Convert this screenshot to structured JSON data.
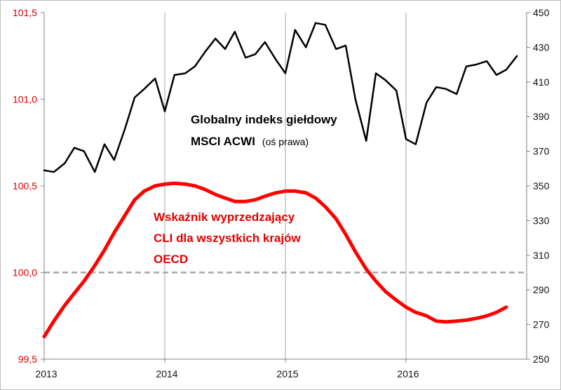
{
  "chart_data": {
    "type": "line",
    "colors": {
      "msci": "#000000",
      "cli": "#ff0000",
      "reference": "#a6a6a6",
      "left_axis_text": "#e00000",
      "right_axis_text": "#111111",
      "gridline": "#a6a6a6",
      "frame": "#808080"
    },
    "x_axis": {
      "range": [
        2013.0,
        2017.0
      ],
      "ticks": [
        2013,
        2014,
        2015,
        2016
      ],
      "tick_labels": [
        "2013",
        "2014",
        "2015",
        "2016"
      ],
      "vertical_grid_at": [
        2014,
        2015,
        2016
      ]
    },
    "y_left": {
      "range": [
        99.5,
        101.5
      ],
      "ticks": [
        99.5,
        100.0,
        100.5,
        101.0,
        101.5
      ],
      "tick_labels": [
        "99,5",
        "100,0",
        "100,5",
        "101,0",
        "101,5"
      ],
      "reference_line": 100.0
    },
    "y_right": {
      "range": [
        250,
        450
      ],
      "ticks": [
        250,
        270,
        290,
        310,
        330,
        350,
        370,
        390,
        410,
        430,
        450
      ],
      "tick_labels": [
        "250",
        "270",
        "290",
        "310",
        "330",
        "350",
        "370",
        "390",
        "410",
        "430",
        "450"
      ]
    },
    "series": [
      {
        "name": "Globalny indeks giełdowy MSCI ACWI (oś prawa)",
        "axis": "right",
        "x": [
          2013.0,
          2013.08,
          2013.17,
          2013.25,
          2013.33,
          2013.42,
          2013.5,
          2013.58,
          2013.67,
          2013.75,
          2013.83,
          2013.92,
          2014.0,
          2014.08,
          2014.17,
          2014.25,
          2014.33,
          2014.42,
          2014.5,
          2014.58,
          2014.67,
          2014.75,
          2014.83,
          2014.92,
          2015.0,
          2015.08,
          2015.17,
          2015.25,
          2015.33,
          2015.42,
          2015.5,
          2015.58,
          2015.67,
          2015.75,
          2015.83,
          2015.92,
          2016.0,
          2016.08,
          2016.17,
          2016.25,
          2016.33,
          2016.42,
          2016.5,
          2016.58,
          2016.67,
          2016.75,
          2016.83,
          2016.92
        ],
        "values": [
          359,
          358,
          363,
          372,
          370,
          358,
          374,
          365,
          383,
          401,
          406,
          412,
          393,
          414,
          415,
          419,
          427,
          435,
          429,
          439,
          424,
          426,
          433,
          423,
          415,
          440,
          430,
          444,
          443,
          429,
          431,
          400,
          376,
          415,
          411,
          405,
          377,
          374,
          398,
          407,
          406,
          403,
          419,
          420,
          422,
          414,
          417,
          425
        ]
      },
      {
        "name": "Wskaźnik wyprzedzający CLI dla wszystkich krajów OECD",
        "axis": "left",
        "x": [
          2013.0,
          2013.08,
          2013.17,
          2013.25,
          2013.33,
          2013.42,
          2013.5,
          2013.58,
          2013.67,
          2013.75,
          2013.83,
          2013.92,
          2014.0,
          2014.08,
          2014.17,
          2014.25,
          2014.33,
          2014.42,
          2014.5,
          2014.58,
          2014.67,
          2014.75,
          2014.83,
          2014.92,
          2015.0,
          2015.08,
          2015.17,
          2015.25,
          2015.33,
          2015.42,
          2015.5,
          2015.58,
          2015.67,
          2015.75,
          2015.83,
          2015.92,
          2016.0,
          2016.08,
          2016.17,
          2016.25,
          2016.33,
          2016.42,
          2016.5,
          2016.58,
          2016.67,
          2016.75,
          2016.83
        ],
        "values": [
          99.63,
          99.72,
          99.81,
          99.88,
          99.95,
          100.04,
          100.13,
          100.23,
          100.33,
          100.42,
          100.47,
          100.5,
          100.51,
          100.515,
          100.51,
          100.5,
          100.48,
          100.45,
          100.43,
          100.41,
          100.41,
          100.42,
          100.44,
          100.46,
          100.47,
          100.47,
          100.46,
          100.43,
          100.38,
          100.31,
          100.22,
          100.12,
          100.02,
          99.95,
          99.89,
          99.84,
          99.8,
          99.77,
          99.75,
          99.72,
          99.715,
          99.72,
          99.725,
          99.735,
          99.75,
          99.77,
          99.8
        ]
      }
    ],
    "annotations": {
      "msci_line1": "Globalny indeks giełdowy",
      "msci_line2": "MSCI ACWI",
      "msci_suffix": "(oś prawa)",
      "cli_line1": "Wskaźnik wyprzedzający",
      "cli_line2": "CLI dla wszystkich krajów",
      "cli_line3": "OECD"
    }
  }
}
